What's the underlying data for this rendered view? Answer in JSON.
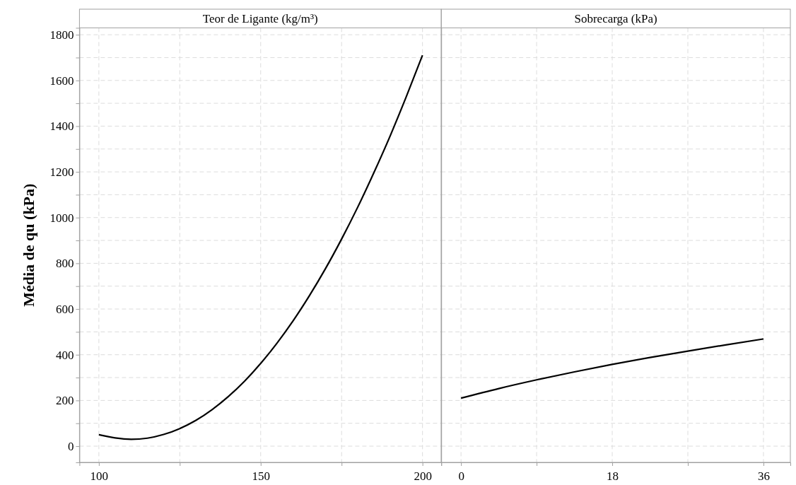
{
  "chart_data": [
    {
      "type": "line",
      "title": "Teor de Ligante (kg/m³)",
      "ylabel": "Média de qu (kPa)",
      "grid": true,
      "line_style": "solid",
      "x": [
        100,
        105,
        110,
        115,
        120,
        125,
        130,
        135,
        140,
        145,
        150,
        155,
        160,
        165,
        170,
        175,
        180,
        185,
        190,
        195,
        200
      ],
      "series": [
        {
          "color": "#000000",
          "values": [
            50,
            36,
            30,
            35,
            51,
            77,
            113,
            160,
            217,
            284,
            362,
            450,
            548,
            657,
            776,
            906,
            1046,
            1197,
            1357,
            1529,
            1710
          ]
        }
      ],
      "xlim": [
        94,
        205.8
      ],
      "xticks": [
        100,
        {
          "value": 125,
          "label": null
        },
        150,
        {
          "value": 175,
          "label": null
        },
        200
      ],
      "ylim": [
        -71,
        1830
      ],
      "yticks": [
        0,
        {
          "value": 100,
          "label": null
        },
        200,
        {
          "value": 300,
          "label": null
        },
        400,
        {
          "value": 500,
          "label": null
        },
        600,
        {
          "value": 700,
          "label": null
        },
        800,
        {
          "value": 900,
          "label": null
        },
        1000,
        {
          "value": 1100,
          "label": null
        },
        1200,
        {
          "value": 1300,
          "label": null
        },
        1400,
        {
          "value": 1500,
          "label": null
        },
        1600,
        {
          "value": 1700,
          "label": null
        },
        1800
      ]
    },
    {
      "type": "line",
      "title": "Sobrecarga (kPa)",
      "grid": true,
      "line_style": "solid",
      "tick_labels": "x",
      "x": [
        0,
        4.5,
        9,
        13.5,
        18,
        22.5,
        27,
        31.5,
        36
      ],
      "series": [
        {
          "color": "#000000",
          "values": [
            210,
            252,
            290,
            325,
            358,
            388,
            416,
            443,
            469
          ]
        }
      ],
      "xlim": [
        -2.35,
        39.2
      ],
      "xticks": [
        0,
        {
          "value": 9,
          "label": null
        },
        18,
        {
          "value": 27,
          "label": null
        },
        36
      ],
      "ylim": [
        -71,
        1830
      ],
      "yticks": [
        0,
        {
          "value": 100,
          "label": null
        },
        200,
        {
          "value": 300,
          "label": null
        },
        400,
        {
          "value": 500,
          "label": null
        },
        600,
        {
          "value": 700,
          "label": null
        },
        800,
        {
          "value": 900,
          "label": null
        },
        1000,
        {
          "value": 1100,
          "label": null
        },
        1200,
        {
          "value": 1300,
          "label": null
        },
        1400,
        {
          "value": 1500,
          "label": null
        },
        1600,
        {
          "value": 1700,
          "label": null
        },
        1800
      ]
    }
  ]
}
